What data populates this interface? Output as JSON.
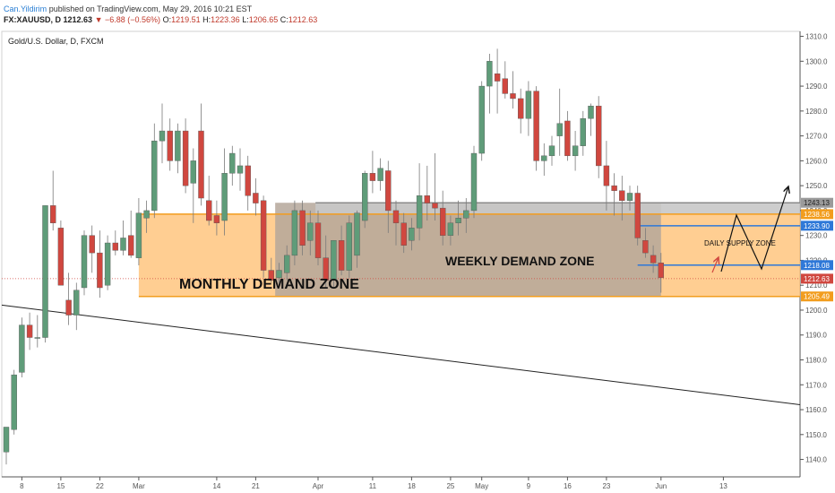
{
  "header": {
    "author": "Can.Yildirim",
    "published": "published on TradingView.com, May 29, 2016 10:21 EST"
  },
  "ohlc": {
    "symbol": "FX:XAUUSD, D",
    "last": "1212.63",
    "change": "▼ −6.88 (−0.56%)",
    "open_label": "O:",
    "open": "1219.51",
    "high_label": "H:",
    "high": "1223.36",
    "low_label": "L:",
    "low": "1206.65",
    "close_label": "C:",
    "close": "1212.63"
  },
  "colors": {
    "up": "#5f9c79",
    "down": "#d0473f",
    "monthly_zone": "#ffc57f",
    "weekly_zone": "#b5a79a",
    "supply_line": "#2e78d8",
    "orange_line": "#f29d1e"
  },
  "chart_data": {
    "type": "candlestick",
    "title": "Gold/U.S. Dollar, D, FXCM",
    "ylim": [
      1133,
      1312
    ],
    "y_ticks": [
      1140,
      1150,
      1160,
      1170,
      1180,
      1190,
      1200,
      1210,
      1220,
      1230,
      1240,
      1250,
      1260,
      1270,
      1280,
      1290,
      1300,
      1310
    ],
    "x_ticks": [
      {
        "label": "8",
        "x": 2
      },
      {
        "label": "15",
        "x": 7
      },
      {
        "label": "22",
        "x": 12
      },
      {
        "label": "Mar",
        "x": 17
      },
      {
        "label": "14",
        "x": 27
      },
      {
        "label": "21",
        "x": 32
      },
      {
        "label": "Apr",
        "x": 40
      },
      {
        "label": "11",
        "x": 47
      },
      {
        "label": "18",
        "x": 52
      },
      {
        "label": "25",
        "x": 57
      },
      {
        "label": "May",
        "x": 61
      },
      {
        "label": "9",
        "x": 67
      },
      {
        "label": "16",
        "x": 72
      },
      {
        "label": "23",
        "x": 77
      },
      {
        "label": "Jun",
        "x": 84
      },
      {
        "label": "13",
        "x": 92
      }
    ],
    "candles": [
      {
        "x": 0,
        "o": 1143,
        "h": 1153,
        "l": 1138,
        "c": 1153
      },
      {
        "x": 1,
        "o": 1152,
        "h": 1176,
        "l": 1150,
        "c": 1174
      },
      {
        "x": 2,
        "o": 1175,
        "h": 1197,
        "l": 1173,
        "c": 1194
      },
      {
        "x": 3,
        "o": 1194,
        "h": 1199,
        "l": 1184,
        "c": 1189
      },
      {
        "x": 4,
        "o": 1189,
        "h": 1198,
        "l": 1185,
        "c": 1189
      },
      {
        "x": 5,
        "o": 1189,
        "h": 1242,
        "l": 1187,
        "c": 1242
      },
      {
        "x": 6,
        "o": 1242,
        "h": 1256,
        "l": 1232,
        "c": 1235
      },
      {
        "x": 7,
        "o": 1233,
        "h": 1236,
        "l": 1210,
        "c": 1210
      },
      {
        "x": 8,
        "o": 1204,
        "h": 1215,
        "l": 1194,
        "c": 1198
      },
      {
        "x": 9,
        "o": 1198,
        "h": 1211,
        "l": 1192,
        "c": 1208
      },
      {
        "x": 10,
        "o": 1209,
        "h": 1232,
        "l": 1206,
        "c": 1230
      },
      {
        "x": 11,
        "o": 1230,
        "h": 1234,
        "l": 1215,
        "c": 1223
      },
      {
        "x": 12,
        "o": 1223,
        "h": 1232,
        "l": 1205,
        "c": 1209
      },
      {
        "x": 13,
        "o": 1210,
        "h": 1230,
        "l": 1208,
        "c": 1227
      },
      {
        "x": 14,
        "o": 1227,
        "h": 1232,
        "l": 1222,
        "c": 1224
      },
      {
        "x": 15,
        "o": 1224,
        "h": 1236,
        "l": 1222,
        "c": 1229
      },
      {
        "x": 16,
        "o": 1230,
        "h": 1240,
        "l": 1221,
        "c": 1222
      },
      {
        "x": 17,
        "o": 1221,
        "h": 1245,
        "l": 1218,
        "c": 1239
      },
      {
        "x": 18,
        "o": 1237,
        "h": 1244,
        "l": 1231,
        "c": 1240
      },
      {
        "x": 19,
        "o": 1240,
        "h": 1275,
        "l": 1237,
        "c": 1268
      },
      {
        "x": 20,
        "o": 1268,
        "h": 1283,
        "l": 1259,
        "c": 1272
      },
      {
        "x": 21,
        "o": 1272,
        "h": 1277,
        "l": 1256,
        "c": 1260
      },
      {
        "x": 22,
        "o": 1260,
        "h": 1275,
        "l": 1255,
        "c": 1272
      },
      {
        "x": 23,
        "o": 1272,
        "h": 1277,
        "l": 1247,
        "c": 1250
      },
      {
        "x": 24,
        "o": 1251,
        "h": 1265,
        "l": 1235,
        "c": 1260
      },
      {
        "x": 25,
        "o": 1272,
        "h": 1283,
        "l": 1242,
        "c": 1245
      },
      {
        "x": 26,
        "o": 1244,
        "h": 1254,
        "l": 1234,
        "c": 1236
      },
      {
        "x": 27,
        "o": 1238,
        "h": 1244,
        "l": 1230,
        "c": 1235
      },
      {
        "x": 28,
        "o": 1236,
        "h": 1265,
        "l": 1230,
        "c": 1255
      },
      {
        "x": 29,
        "o": 1255,
        "h": 1266,
        "l": 1250,
        "c": 1263
      },
      {
        "x": 30,
        "o": 1255,
        "h": 1265,
        "l": 1248,
        "c": 1258
      },
      {
        "x": 31,
        "o": 1258,
        "h": 1262,
        "l": 1240,
        "c": 1246
      },
      {
        "x": 32,
        "o": 1247,
        "h": 1253,
        "l": 1238,
        "c": 1243
      },
      {
        "x": 33,
        "o": 1244,
        "h": 1246,
        "l": 1213,
        "c": 1216
      },
      {
        "x": 34,
        "o": 1216,
        "h": 1221,
        "l": 1211,
        "c": 1212
      },
      {
        "x": 35,
        "o": 1213,
        "h": 1219,
        "l": 1209,
        "c": 1216
      },
      {
        "x": 36,
        "o": 1215,
        "h": 1226,
        "l": 1212,
        "c": 1222
      },
      {
        "x": 37,
        "o": 1222,
        "h": 1244,
        "l": 1218,
        "c": 1240
      },
      {
        "x": 38,
        "o": 1240,
        "h": 1244,
        "l": 1222,
        "c": 1226
      },
      {
        "x": 39,
        "o": 1228,
        "h": 1240,
        "l": 1222,
        "c": 1235
      },
      {
        "x": 40,
        "o": 1235,
        "h": 1240,
        "l": 1218,
        "c": 1221
      },
      {
        "x": 41,
        "o": 1221,
        "h": 1230,
        "l": 1209,
        "c": 1212
      },
      {
        "x": 42,
        "o": 1212,
        "h": 1228,
        "l": 1209,
        "c": 1228
      },
      {
        "x": 43,
        "o": 1228,
        "h": 1234,
        "l": 1214,
        "c": 1216
      },
      {
        "x": 44,
        "o": 1216,
        "h": 1238,
        "l": 1213,
        "c": 1235
      },
      {
        "x": 45,
        "o": 1222,
        "h": 1240,
        "l": 1217,
        "c": 1239
      },
      {
        "x": 46,
        "o": 1236,
        "h": 1256,
        "l": 1233,
        "c": 1255
      },
      {
        "x": 47,
        "o": 1255,
        "h": 1264,
        "l": 1247,
        "c": 1252
      },
      {
        "x": 48,
        "o": 1252,
        "h": 1261,
        "l": 1248,
        "c": 1257
      },
      {
        "x": 49,
        "o": 1256,
        "h": 1260,
        "l": 1231,
        "c": 1240
      },
      {
        "x": 50,
        "o": 1240,
        "h": 1244,
        "l": 1226,
        "c": 1235
      },
      {
        "x": 51,
        "o": 1235,
        "h": 1239,
        "l": 1223,
        "c": 1226
      },
      {
        "x": 52,
        "o": 1228,
        "h": 1237,
        "l": 1224,
        "c": 1233
      },
      {
        "x": 53,
        "o": 1233,
        "h": 1259,
        "l": 1228,
        "c": 1246
      },
      {
        "x": 54,
        "o": 1246,
        "h": 1258,
        "l": 1236,
        "c": 1243
      },
      {
        "x": 55,
        "o": 1243,
        "h": 1263,
        "l": 1236,
        "c": 1241
      },
      {
        "x": 56,
        "o": 1241,
        "h": 1248,
        "l": 1226,
        "c": 1230
      },
      {
        "x": 57,
        "o": 1230,
        "h": 1238,
        "l": 1226,
        "c": 1235
      },
      {
        "x": 58,
        "o": 1235,
        "h": 1244,
        "l": 1230,
        "c": 1237
      },
      {
        "x": 59,
        "o": 1237,
        "h": 1245,
        "l": 1231,
        "c": 1240
      },
      {
        "x": 60,
        "o": 1240,
        "h": 1266,
        "l": 1237,
        "c": 1263
      },
      {
        "x": 61,
        "o": 1263,
        "h": 1292,
        "l": 1260,
        "c": 1290
      },
      {
        "x": 62,
        "o": 1290,
        "h": 1303,
        "l": 1279,
        "c": 1300
      },
      {
        "x": 63,
        "o": 1295,
        "h": 1305,
        "l": 1279,
        "c": 1292
      },
      {
        "x": 64,
        "o": 1293,
        "h": 1300,
        "l": 1285,
        "c": 1287
      },
      {
        "x": 65,
        "o": 1287,
        "h": 1296,
        "l": 1281,
        "c": 1285
      },
      {
        "x": 66,
        "o": 1285,
        "h": 1289,
        "l": 1271,
        "c": 1277
      },
      {
        "x": 67,
        "o": 1277,
        "h": 1292,
        "l": 1270,
        "c": 1288
      },
      {
        "x": 68,
        "o": 1288,
        "h": 1290,
        "l": 1256,
        "c": 1260
      },
      {
        "x": 69,
        "o": 1260,
        "h": 1267,
        "l": 1254,
        "c": 1262
      },
      {
        "x": 70,
        "o": 1262,
        "h": 1270,
        "l": 1258,
        "c": 1266
      },
      {
        "x": 71,
        "o": 1270,
        "h": 1289,
        "l": 1262,
        "c": 1275
      },
      {
        "x": 72,
        "o": 1276,
        "h": 1280,
        "l": 1260,
        "c": 1262
      },
      {
        "x": 73,
        "o": 1262,
        "h": 1272,
        "l": 1256,
        "c": 1266
      },
      {
        "x": 74,
        "o": 1266,
        "h": 1280,
        "l": 1262,
        "c": 1277
      },
      {
        "x": 75,
        "o": 1277,
        "h": 1283,
        "l": 1270,
        "c": 1282
      },
      {
        "x": 76,
        "o": 1282,
        "h": 1286,
        "l": 1253,
        "c": 1258
      },
      {
        "x": 77,
        "o": 1258,
        "h": 1268,
        "l": 1240,
        "c": 1250
      },
      {
        "x": 78,
        "o": 1250,
        "h": 1255,
        "l": 1238,
        "c": 1248
      },
      {
        "x": 79,
        "o": 1248,
        "h": 1254,
        "l": 1236,
        "c": 1244
      },
      {
        "x": 80,
        "o": 1244,
        "h": 1250,
        "l": 1240,
        "c": 1247
      },
      {
        "x": 81,
        "o": 1247,
        "h": 1250,
        "l": 1226,
        "c": 1229
      },
      {
        "x": 82,
        "o": 1228,
        "h": 1233,
        "l": 1221,
        "c": 1223
      },
      {
        "x": 83,
        "o": 1222,
        "h": 1226,
        "l": 1215,
        "c": 1219
      },
      {
        "x": 84,
        "o": 1219,
        "h": 1223,
        "l": 1207,
        "c": 1213
      }
    ],
    "annotations": {
      "monthly_zone_label": "MONTHLY DEMAND ZONE",
      "weekly_zone_label": "WEEKLY DEMAND ZONE",
      "supply_zone_label": "DAILY SUPPLY ZONE",
      "price_labels": [
        {
          "value": 1243.13,
          "text": "1243.13",
          "color": "#9a9a9a"
        },
        {
          "value": 1238.56,
          "text": "1238.56",
          "color": "#f29d1e"
        },
        {
          "value": 1233.9,
          "text": "1233.90",
          "color": "#2e78d8"
        },
        {
          "value": 1218.08,
          "text": "1218.08",
          "color": "#2e78d8"
        },
        {
          "value": 1212.63,
          "text": "1212.63",
          "color": "#d0473f"
        },
        {
          "value": 1205.49,
          "text": "1205.49",
          "color": "#f29d1e"
        }
      ],
      "monthly_zone": {
        "from_x": 17,
        "to_x": 92,
        "low": 1205.49,
        "high": 1238.56
      },
      "weekly_zone": {
        "from_x": 34.5,
        "to_x": 84,
        "low": 1205.49,
        "high": 1243.13
      },
      "supply_zone": {
        "from_x": 81,
        "to_x": 92,
        "low": 1218.08,
        "high": 1233.9
      },
      "trendline": {
        "x1": -1,
        "y1": 1202,
        "x2": 93,
        "y2": 1162
      }
    }
  }
}
